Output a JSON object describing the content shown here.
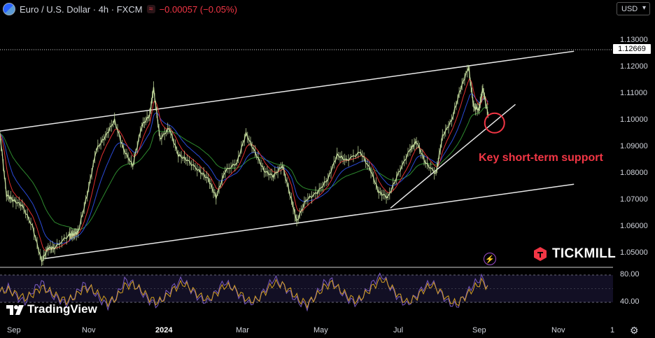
{
  "header": {
    "title": "Euro / U.S. Dollar · 4h · FXCM",
    "change": "−0.00057 (−0.05%)",
    "icon": "euro-dollar-icon",
    "flag_icon": "approx-icon"
  },
  "currency_selector": {
    "label": "USD",
    "icon": "chevron-down-icon"
  },
  "last_price": "1.12669",
  "annotation": "Key short-term support",
  "brand": "TICKMILL",
  "watermark": "TradingView",
  "colors": {
    "background": "#000000",
    "price": "#c8e0a0",
    "ema_fast": "#e03030",
    "ema_mid": "#2a4ad8",
    "ema_slow": "#2e8a2e",
    "trendline": "#e8e8e8",
    "annotation": "#f23645",
    "osc_main": "#7a5ac0",
    "osc_signal": "#d4a020"
  },
  "chart_data": [
    {
      "type": "line",
      "title": "Euro / U.S. Dollar · 4h · FXCM",
      "x_ticks": [
        "Sep",
        "Nov",
        "2024",
        "Mar",
        "May",
        "Jul",
        "Sep",
        "Nov",
        "1"
      ],
      "y_ticks": [
        "1.13000",
        "1.12000",
        "1.11000",
        "1.10000",
        "1.09000",
        "1.08000",
        "1.07000",
        "1.06000",
        "1.05000"
      ],
      "ylim": [
        1.045,
        1.135
      ],
      "x_range": [
        "2023-09-01",
        "2024-12-15"
      ],
      "series": [
        {
          "type": "price",
          "points": [
            [
              "2023-09-01",
              1.095
            ],
            [
              "2023-09-06",
              1.072
            ],
            [
              "2023-09-11",
              1.07
            ],
            [
              "2023-09-18",
              1.068
            ],
            [
              "2023-09-26",
              1.06
            ],
            [
              "2023-10-03",
              1.047
            ],
            [
              "2023-10-08",
              1.052
            ],
            [
              "2023-10-13",
              1.052
            ],
            [
              "2023-10-24",
              1.057
            ],
            [
              "2023-10-27",
              1.057
            ],
            [
              "2023-10-31",
              1.058
            ],
            [
              "2023-11-07",
              1.072
            ],
            [
              "2023-11-14",
              1.089
            ],
            [
              "2023-11-21",
              1.094
            ],
            [
              "2023-11-28",
              1.1
            ],
            [
              "2023-12-05",
              1.089
            ],
            [
              "2023-12-12",
              1.083
            ],
            [
              "2023-12-19",
              1.098
            ],
            [
              "2023-12-25",
              1.102
            ],
            [
              "2023-12-28",
              1.112
            ],
            [
              "2024-01-02",
              1.093
            ],
            [
              "2024-01-09",
              1.097
            ],
            [
              "2024-01-16",
              1.087
            ],
            [
              "2024-01-23",
              1.085
            ],
            [
              "2024-02-01",
              1.081
            ],
            [
              "2024-02-08",
              1.078
            ],
            [
              "2024-02-14",
              1.071
            ],
            [
              "2024-02-21",
              1.081
            ],
            [
              "2024-03-01",
              1.084
            ],
            [
              "2024-03-08",
              1.095
            ],
            [
              "2024-03-15",
              1.088
            ],
            [
              "2024-03-22",
              1.081
            ],
            [
              "2024-03-29",
              1.079
            ],
            [
              "2024-04-05",
              1.083
            ],
            [
              "2024-04-12",
              1.07
            ],
            [
              "2024-04-16",
              1.062
            ],
            [
              "2024-04-23",
              1.07
            ],
            [
              "2024-05-02",
              1.073
            ],
            [
              "2024-05-10",
              1.078
            ],
            [
              "2024-05-17",
              1.087
            ],
            [
              "2024-05-24",
              1.085
            ],
            [
              "2024-06-04",
              1.088
            ],
            [
              "2024-06-12",
              1.081
            ],
            [
              "2024-06-18",
              1.073
            ],
            [
              "2024-06-25",
              1.071
            ],
            [
              "2024-07-03",
              1.08
            ],
            [
              "2024-07-12",
              1.089
            ],
            [
              "2024-07-17",
              1.092
            ],
            [
              "2024-07-24",
              1.084
            ],
            [
              "2024-08-01",
              1.08
            ],
            [
              "2024-08-06",
              1.094
            ],
            [
              "2024-08-13",
              1.1
            ],
            [
              "2024-08-20",
              1.112
            ],
            [
              "2024-08-26",
              1.12
            ],
            [
              "2024-08-30",
              1.105
            ],
            [
              "2024-09-03",
              1.104
            ],
            [
              "2024-09-06",
              1.112
            ],
            [
              "2024-09-10",
              1.102
            ]
          ]
        }
      ],
      "channel_upper": [
        [
          "2023-09-01",
          1.096
        ],
        [
          "2024-11-15",
          1.126
        ]
      ],
      "channel_lower": [
        [
          "2023-10-05",
          1.048
        ],
        [
          "2024-11-15",
          1.076
        ]
      ],
      "support_line": [
        [
          "2024-06-27",
          1.067
        ],
        [
          "2024-10-01",
          1.106
        ]
      ],
      "support_circle_center": [
        "2024-09-15",
        1.099
      ]
    },
    {
      "type": "line",
      "title": "",
      "y_ticks": [
        "80.00",
        "40.00"
      ],
      "levels": [
        80,
        40
      ],
      "ylim": [
        20,
        90
      ],
      "series": [
        {
          "name": "",
          "values": [
            55,
            62,
            48,
            40,
            58,
            70,
            52,
            45,
            38,
            50,
            66,
            60,
            44,
            35,
            48,
            72,
            68,
            55,
            42,
            36,
            52,
            64,
            74,
            58,
            46,
            40,
            55,
            70,
            62,
            48,
            38,
            44,
            60,
            75,
            66,
            52,
            40,
            34,
            50,
            68,
            72,
            56,
            44,
            38,
            54,
            70,
            80,
            62,
            46,
            36,
            48,
            62,
            70,
            54,
            40,
            34,
            50,
            66,
            76,
            58
          ]
        },
        {
          "name": "",
          "values": [
            56,
            58,
            52,
            46,
            52,
            62,
            56,
            48,
            42,
            48,
            60,
            60,
            50,
            40,
            46,
            64,
            66,
            58,
            46,
            40,
            48,
            60,
            68,
            60,
            50,
            44,
            52,
            64,
            62,
            52,
            42,
            44,
            56,
            68,
            66,
            56,
            44,
            38,
            48,
            62,
            68,
            58,
            48,
            42,
            52,
            64,
            74,
            64,
            50,
            40,
            46,
            58,
            66,
            56,
            44,
            38,
            48,
            60,
            70,
            60
          ]
        }
      ]
    }
  ]
}
